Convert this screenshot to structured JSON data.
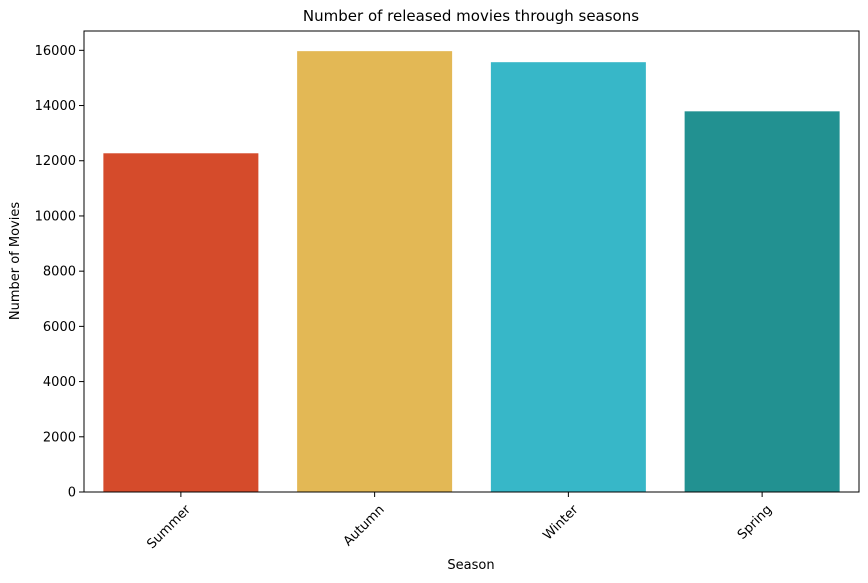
{
  "chart_data": {
    "type": "bar",
    "title": "Number of released movies through seasons",
    "xlabel": "Season",
    "ylabel": "Number of Movies",
    "categories": [
      "Summer",
      "Autumn",
      "Winter",
      "Spring"
    ],
    "values": [
      12270,
      15970,
      15570,
      13790
    ],
    "colors": [
      "#d54b2b",
      "#e3b855",
      "#37b7c8",
      "#229191"
    ],
    "ylim": [
      0,
      16700
    ],
    "yticks": [
      0,
      2000,
      4000,
      6000,
      8000,
      10000,
      12000,
      14000,
      16000
    ],
    "ytick_labels": [
      "0",
      "2000",
      "4000",
      "6000",
      "8000",
      "10000",
      "12000",
      "14000",
      "16000"
    ],
    "x_tick_rotation": 45,
    "grid": false,
    "legend": "none"
  }
}
